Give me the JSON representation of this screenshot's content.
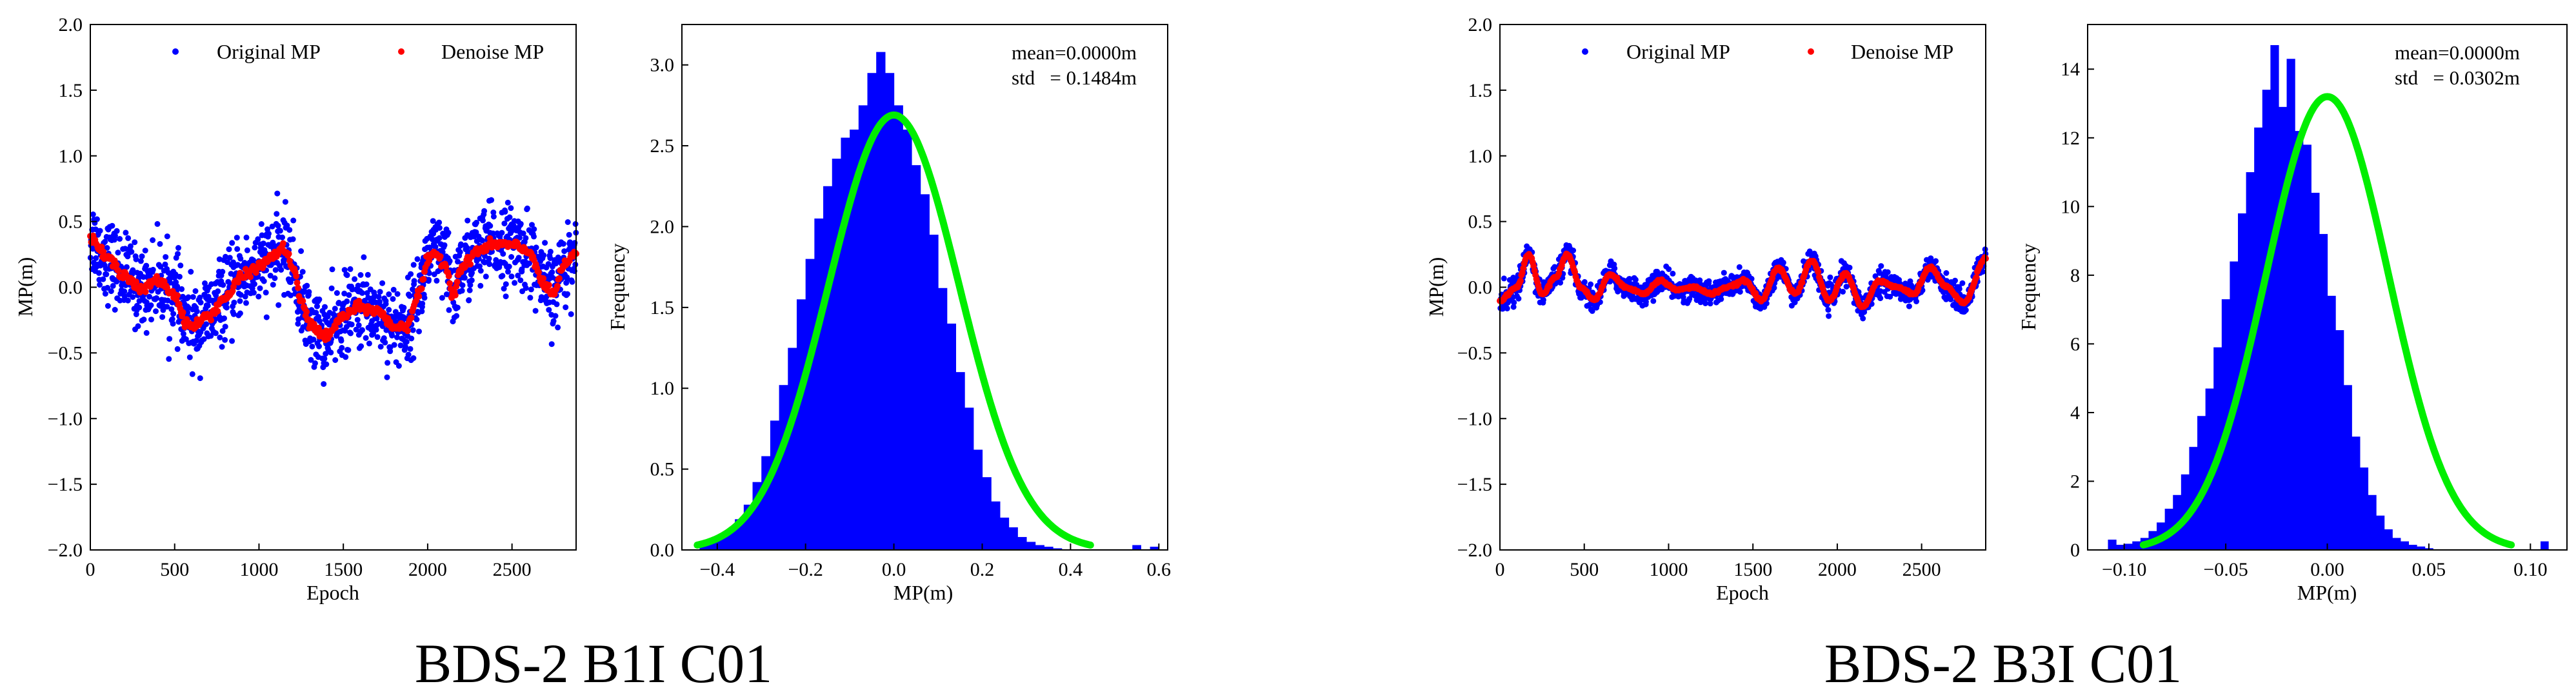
{
  "chart_data": [
    {
      "type": "scatter",
      "group": "BDS-2 B1I C01",
      "xlabel": "Epoch",
      "ylabel": "MP(m)",
      "xlim": [
        0,
        2880
      ],
      "ylim": [
        -2.0,
        2.0
      ],
      "xticks": [
        0,
        500,
        1000,
        1500,
        2000,
        2500
      ],
      "yticks": [
        "2.0",
        "1.5",
        "1.0",
        "0.5",
        "0.0",
        "−0.5",
        "−1.0",
        "−1.5",
        "−2.0"
      ],
      "legend": [
        "Original MP",
        "Denoise MP"
      ],
      "denoise_series": {
        "name": "Denoise MP",
        "x": [
          0,
          100,
          200,
          300,
          400,
          500,
          560,
          600,
          700,
          800,
          900,
          1000,
          1100,
          1150,
          1200,
          1250,
          1300,
          1400,
          1500,
          1600,
          1700,
          1800,
          1870,
          1950,
          2000,
          2050,
          2100,
          2150,
          2200,
          2300,
          2400,
          2500,
          2600,
          2700,
          2750,
          2800,
          2880
        ],
        "values": [
          0.38,
          0.22,
          0.1,
          -0.02,
          0.05,
          -0.05,
          -0.25,
          -0.3,
          -0.22,
          -0.08,
          0.08,
          0.16,
          0.25,
          0.3,
          0.15,
          -0.1,
          -0.28,
          -0.38,
          -0.22,
          -0.15,
          -0.18,
          -0.3,
          -0.3,
          -0.05,
          0.2,
          0.25,
          0.18,
          -0.05,
          0.15,
          0.28,
          0.33,
          0.32,
          0.27,
          0.0,
          -0.05,
          0.15,
          0.25
        ]
      },
      "original_series": {
        "name": "Original MP",
        "noise_std": 0.15
      }
    },
    {
      "type": "histogram",
      "group": "BDS-2 B1I C01",
      "xlabel": "MP(m)",
      "ylabel": "Frequency",
      "xlim": [
        -0.48,
        0.62
      ],
      "ylim": [
        0,
        3.25
      ],
      "xticks": [
        -0.4,
        -0.2,
        0.0,
        0.2,
        0.4,
        0.6
      ],
      "xtick_labels": [
        "−0.4",
        "−0.2",
        "0.0",
        "0.2",
        "0.4",
        "0.6"
      ],
      "yticks": [
        0.0,
        0.5,
        1.0,
        1.5,
        2.0,
        2.5,
        3.0
      ],
      "ytick_labels": [
        "0.0",
        "0.5",
        "1.0",
        "1.5",
        "2.0",
        "2.5",
        "3.0"
      ],
      "bin_start": -0.44,
      "bin_width": 0.02,
      "bin_heights": [
        0.04,
        0.06,
        0.08,
        0.12,
        0.19,
        0.28,
        0.42,
        0.58,
        0.8,
        1.02,
        1.25,
        1.55,
        1.8,
        2.05,
        2.25,
        2.42,
        2.55,
        2.6,
        2.75,
        2.95,
        3.08,
        2.95,
        2.75,
        2.6,
        2.38,
        2.2,
        1.95,
        1.62,
        1.4,
        1.1,
        0.88,
        0.62,
        0.45,
        0.3,
        0.2,
        0.14,
        0.08,
        0.05,
        0.03,
        0.02,
        0.01,
        0.0,
        0.0,
        0.0,
        0.0,
        0.0,
        0.0,
        0.0,
        0.0,
        0.0
      ],
      "outlier_bins": [
        {
          "x": 0.54,
          "height": 0.03
        },
        {
          "x": 0.58,
          "height": 0.02
        }
      ],
      "fit_curve": {
        "mean": 0.0,
        "std": 0.1484,
        "peak": 2.69
      },
      "stats": {
        "mean": "mean=0.0000m",
        "std": "std   = 0.1484m"
      }
    },
    {
      "type": "scatter",
      "group": "BDS-2 B3I C01",
      "xlabel": "Epoch",
      "ylabel": "MP(m)",
      "xlim": [
        0,
        2880
      ],
      "ylim": [
        -2.0,
        2.0
      ],
      "xticks": [
        0,
        500,
        1000,
        1500,
        2000,
        2500
      ],
      "yticks": [
        "2.0",
        "1.5",
        "1.0",
        "0.5",
        "0.0",
        "−0.5",
        "−1.0",
        "−1.5",
        "−2.0"
      ],
      "legend": [
        "Original MP",
        "Denoise MP"
      ],
      "denoise_series": {
        "name": "Denoise MP",
        "x": [
          0,
          100,
          170,
          250,
          330,
          400,
          480,
          560,
          650,
          750,
          850,
          950,
          1050,
          1150,
          1250,
          1350,
          1450,
          1550,
          1650,
          1750,
          1850,
          1950,
          2050,
          2150,
          2250,
          2350,
          2450,
          2550,
          2650,
          2750,
          2880
        ],
        "values": [
          -0.1,
          0.0,
          0.25,
          -0.05,
          0.08,
          0.25,
          0.0,
          -0.1,
          0.1,
          0.0,
          -0.05,
          0.05,
          -0.02,
          0.0,
          -0.05,
          0.0,
          0.05,
          -0.1,
          0.15,
          -0.05,
          0.2,
          -0.1,
          0.1,
          -0.15,
          0.05,
          0.0,
          -0.05,
          0.15,
          0.0,
          -0.12,
          0.22
        ]
      },
      "original_series": {
        "name": "Original MP",
        "noise_std": 0.045
      }
    },
    {
      "type": "histogram",
      "group": "BDS-2 B3I C01",
      "xlabel": "MP(m)",
      "ylabel": "Frequency",
      "xlim": [
        -0.118,
        0.118
      ],
      "ylim": [
        0,
        15.3
      ],
      "xticks": [
        -0.1,
        -0.05,
        0.0,
        0.05,
        0.1
      ],
      "xtick_labels": [
        "−0.10",
        "−0.05",
        "0.00",
        "0.05",
        "0.10"
      ],
      "yticks": [
        0,
        2,
        4,
        6,
        8,
        10,
        12,
        14
      ],
      "ytick_labels": [
        "0",
        "2",
        "4",
        "6",
        "8",
        "10",
        "12",
        "14"
      ],
      "bin_start": -0.108,
      "bin_width": 0.004,
      "bin_heights": [
        0.3,
        0.15,
        0.18,
        0.25,
        0.35,
        0.55,
        0.8,
        1.2,
        1.6,
        2.2,
        3.0,
        3.9,
        4.7,
        5.9,
        7.3,
        8.4,
        9.8,
        11.0,
        12.3,
        13.4,
        14.7,
        12.9,
        14.3,
        12.2,
        11.8,
        10.4,
        9.2,
        7.4,
        6.4,
        4.8,
        3.3,
        2.4,
        1.6,
        1.0,
        0.6,
        0.35,
        0.25,
        0.15,
        0.1,
        0.05,
        0.0,
        0.0,
        0.0,
        0.0,
        0.0,
        0.0,
        0.0,
        0.0,
        0.0,
        0.0,
        0.0,
        0.0,
        0.0,
        0.0
      ],
      "outlier_bins": [
        {
          "x": 0.105,
          "height": 0.25
        }
      ],
      "fit_curve": {
        "mean": 0.0,
        "std": 0.0302,
        "peak": 13.2
      },
      "stats": {
        "mean": "mean=0.0000m",
        "std": "std   = 0.0302m"
      }
    }
  ],
  "captions": [
    "BDS-2 B1I C01",
    "BDS-2 B3I C01"
  ],
  "colors": {
    "original": "#0000ff",
    "denoise": "#ff0000",
    "histogram": "#0000ff",
    "fit": "#00ee00"
  }
}
